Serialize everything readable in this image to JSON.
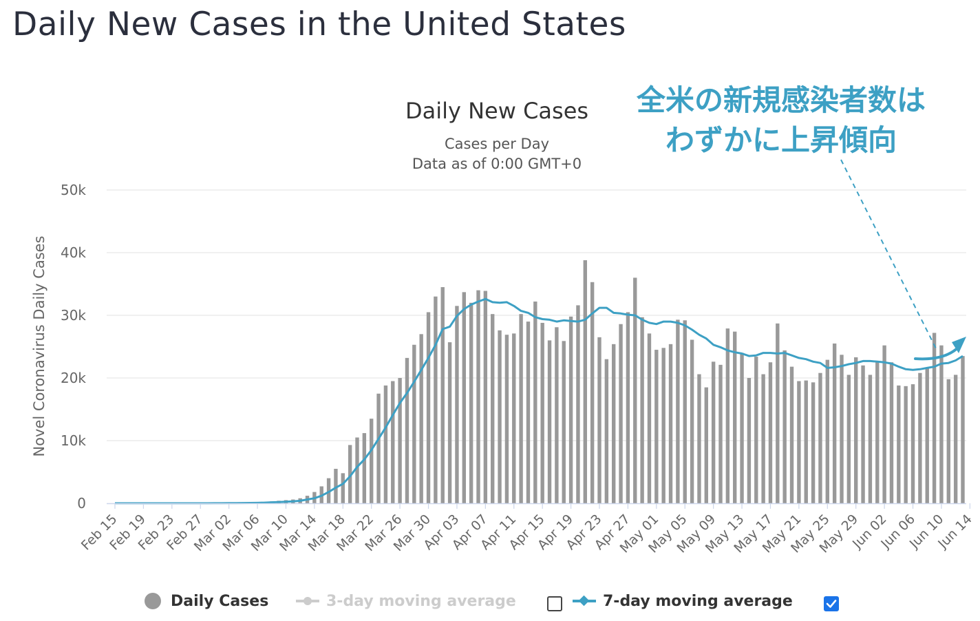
{
  "page_title": "Daily New Cases in the United States",
  "chart_data": {
    "type": "bar",
    "title": "Daily New Cases",
    "subtitle_lines": [
      "Cases per Day",
      "Data as of 0:00 GMT+0"
    ],
    "ylabel": "Novel Coronavirus Daily Cases",
    "ylim": [
      0,
      50000
    ],
    "yticks": [
      0,
      10000,
      20000,
      30000,
      40000,
      50000
    ],
    "ytick_labels": [
      "0",
      "10k",
      "20k",
      "30k",
      "40k",
      "50k"
    ],
    "grid": true,
    "xtick_labels": [
      "Feb 15",
      "Feb 19",
      "Feb 23",
      "Feb 27",
      "Mar 02",
      "Mar 06",
      "Mar 10",
      "Mar 14",
      "Mar 18",
      "Mar 22",
      "Mar 26",
      "Mar 30",
      "Apr 03",
      "Apr 07",
      "Apr 11",
      "Apr 15",
      "Apr 19",
      "Apr 23",
      "Apr 27",
      "May 01",
      "May 05",
      "May 09",
      "May 13",
      "May 17",
      "May 21",
      "May 25",
      "May 29",
      "Jun 02",
      "Jun 06",
      "Jun 10",
      "Jun 14"
    ],
    "x_start_label": "Feb 15",
    "series": [
      {
        "name": "Daily Cases",
        "type": "bar",
        "color": "#999999",
        "values": [
          0,
          0,
          0,
          0,
          0,
          0,
          0,
          0,
          0,
          0,
          0,
          0,
          0,
          0,
          10,
          10,
          20,
          40,
          60,
          70,
          100,
          200,
          300,
          400,
          500,
          600,
          800,
          1200,
          1800,
          2700,
          4000,
          5500,
          4800,
          9300,
          10500,
          11200,
          13500,
          17500,
          18800,
          19500,
          20000,
          23200,
          25300,
          27000,
          30500,
          33000,
          34500,
          25700,
          31500,
          33700,
          32000,
          34000,
          33900,
          30200,
          27600,
          26900,
          27100,
          30200,
          29000,
          32200,
          28800,
          26000,
          28100,
          25900,
          29800,
          31600,
          38800,
          35300,
          26500,
          23000,
          25400,
          28600,
          30500,
          36000,
          29700,
          27100,
          24500,
          24800,
          25400,
          29300,
          29200,
          26100,
          20600,
          18500,
          22600,
          22100,
          27900,
          27400,
          24000,
          20000,
          23400,
          20600,
          22500,
          28700,
          24400,
          21800,
          19500,
          19600,
          19300,
          20800,
          22900,
          25500,
          23700,
          20500,
          23300,
          22000,
          20500,
          22700,
          25200,
          22500,
          18800,
          18700,
          19000,
          20800,
          21700,
          27200,
          25200,
          19800,
          20500,
          23500
        ]
      },
      {
        "name": "3-day moving average",
        "type": "line",
        "color": "#cccccc",
        "visible": false
      },
      {
        "name": "7-day moving average",
        "type": "line",
        "color": "#3da0c4",
        "values": [
          0,
          0,
          0,
          0,
          0,
          0,
          0,
          0,
          0,
          0,
          0,
          0,
          0,
          0,
          10,
          10,
          20,
          30,
          40,
          50,
          70,
          100,
          150,
          200,
          250,
          300,
          400,
          600,
          800,
          1200,
          1800,
          2500,
          3100,
          4300,
          5800,
          7000,
          8500,
          10300,
          12100,
          14100,
          16000,
          17600,
          19400,
          21300,
          23200,
          25300,
          27800,
          28200,
          29900,
          31000,
          31700,
          32200,
          32600,
          32100,
          32000,
          32100,
          31500,
          30700,
          30400,
          29700,
          29400,
          29300,
          29000,
          29200,
          29100,
          29000,
          29300,
          30300,
          31200,
          31200,
          30400,
          30300,
          30100,
          30000,
          29300,
          28800,
          28600,
          29000,
          29000,
          28800,
          28400,
          27700,
          26900,
          26300,
          25300,
          24900,
          24400,
          24100,
          23900,
          23500,
          23600,
          24000,
          24000,
          23900,
          24000,
          23600,
          23200,
          23000,
          22600,
          22400,
          21600,
          21700,
          21900,
          22200,
          22400,
          22700,
          22700,
          22600,
          22500,
          22300,
          21800,
          21400,
          21300,
          21400,
          21600,
          21800,
          22300,
          22400,
          22800,
          23500
        ]
      }
    ],
    "annotation": {
      "text_lines": [
        "全米の新規感染者数は",
        "わずかに上昇傾向"
      ],
      "color": "#3da0c4"
    }
  },
  "legend": {
    "items": [
      {
        "label": "Daily Cases",
        "color": "#999999"
      },
      {
        "label": "3-day moving average",
        "color": "#cccccc"
      },
      {
        "label": "7-day moving average",
        "color": "#3da0c4"
      }
    ],
    "checkbox_3day_checked": false,
    "checkbox_7day_checked": true,
    "checkbox_color": "#1a73e8"
  }
}
